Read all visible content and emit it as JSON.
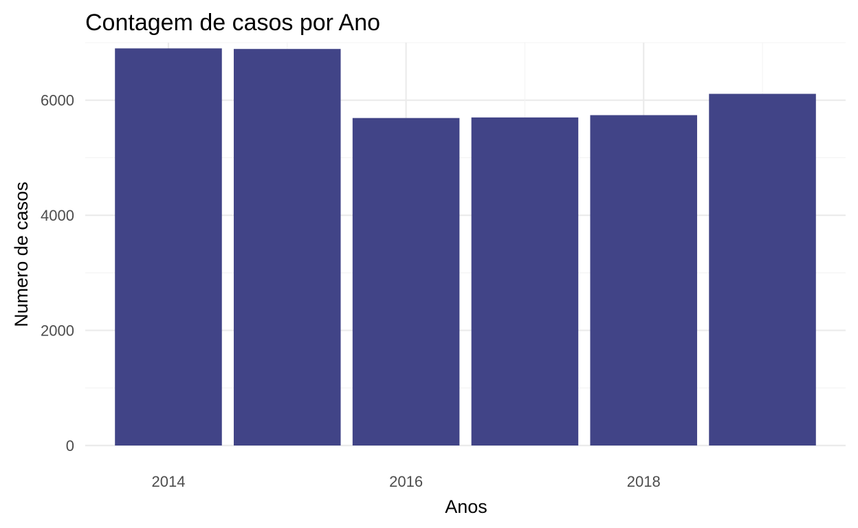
{
  "chart_data": {
    "type": "bar",
    "title": "Contagem de casos por Ano",
    "xlabel": "Anos",
    "ylabel": "Numero de casos",
    "x": [
      2014,
      2015,
      2016,
      2017,
      2018,
      2019
    ],
    "values": [
      6900,
      6890,
      5690,
      5700,
      5740,
      6110
    ],
    "xlim": [
      2013.3,
      2019.7
    ],
    "ylim": [
      0,
      7000
    ],
    "x_ticks": [
      2014,
      2016,
      2018
    ],
    "y_ticks": [
      0,
      2000,
      4000,
      6000
    ],
    "grid": true,
    "bar_color": "#414487"
  }
}
